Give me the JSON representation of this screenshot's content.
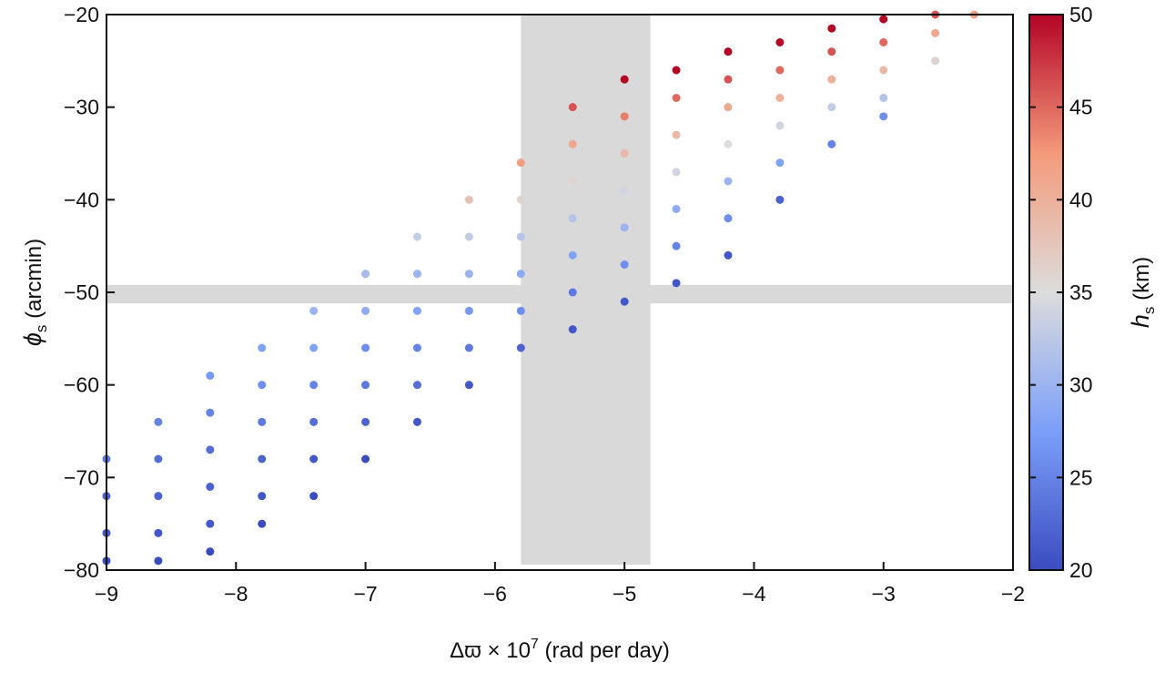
{
  "chart_data": {
    "type": "scatter",
    "title": "",
    "xlabel": {
      "main": "Δϖ × 10",
      "sup": "7",
      "rest": " (rad per day)"
    },
    "ylabel": {
      "main": "ϕ",
      "sub": "s",
      "rest": " (arcmin)"
    },
    "xlim": [
      -9,
      -2
    ],
    "ylim": [
      -80,
      -20
    ],
    "xticks": [
      -9,
      -8,
      -7,
      -6,
      -5,
      -4,
      -3,
      -2
    ],
    "xtick_labels": [
      "−9",
      "−8",
      "−7",
      "−6",
      "−5",
      "−4",
      "−3",
      "−2"
    ],
    "yticks": [
      -20,
      -30,
      -40,
      -50,
      -60,
      -70,
      -80
    ],
    "ytick_labels": [
      "−20",
      "−30",
      "−40",
      "−50",
      "−60",
      "−70",
      "−80"
    ],
    "grid": false,
    "shaded_bands": [
      {
        "axis": "x",
        "range": [
          -5.8,
          -4.8
        ],
        "color": "#d9d9d9"
      },
      {
        "axis": "y",
        "range": [
          -51.2,
          -49.2
        ],
        "color": "#d9d9d9"
      }
    ],
    "colorbar": {
      "label": {
        "main": "h",
        "sub": "s",
        "rest": " (km)"
      },
      "range": [
        20,
        50
      ],
      "ticks": [
        20,
        25,
        30,
        35,
        40,
        45,
        50
      ],
      "tick_labels": [
        "20",
        "25",
        "30",
        "35",
        "40",
        "45",
        "50"
      ],
      "colormap": "coolwarm",
      "colors": [
        "#3b4cc0",
        "#7b9ff9",
        "#dcdcdc",
        "#f49a7b",
        "#b40426"
      ],
      "placement": "right"
    },
    "points_xyh": [
      [
        -9.0,
        -68,
        24
      ],
      [
        -9.0,
        -72,
        22
      ],
      [
        -9.0,
        -76,
        21
      ],
      [
        -9.0,
        -79,
        20
      ],
      [
        -8.6,
        -64,
        25
      ],
      [
        -8.6,
        -68,
        23
      ],
      [
        -8.6,
        -72,
        22
      ],
      [
        -8.6,
        -76,
        21
      ],
      [
        -8.6,
        -79,
        20
      ],
      [
        -8.2,
        -59,
        27
      ],
      [
        -8.2,
        -63,
        25
      ],
      [
        -8.2,
        -67,
        23
      ],
      [
        -8.2,
        -71,
        22
      ],
      [
        -8.2,
        -75,
        21
      ],
      [
        -8.2,
        -78,
        20
      ],
      [
        -7.8,
        -56,
        28
      ],
      [
        -7.8,
        -60,
        26
      ],
      [
        -7.8,
        -64,
        24
      ],
      [
        -7.8,
        -68,
        22
      ],
      [
        -7.8,
        -72,
        21
      ],
      [
        -7.8,
        -75,
        20
      ],
      [
        -7.4,
        -52,
        30
      ],
      [
        -7.4,
        -56,
        28
      ],
      [
        -7.4,
        -60,
        25
      ],
      [
        -7.4,
        -64,
        23
      ],
      [
        -7.4,
        -68,
        21
      ],
      [
        -7.4,
        -72,
        20
      ],
      [
        -7.0,
        -48,
        31
      ],
      [
        -7.0,
        -52,
        29
      ],
      [
        -7.0,
        -56,
        26
      ],
      [
        -7.0,
        -60,
        24
      ],
      [
        -7.0,
        -64,
        22
      ],
      [
        -7.0,
        -68,
        20
      ],
      [
        -6.6,
        -44,
        33
      ],
      [
        -6.6,
        -48,
        30
      ],
      [
        -6.6,
        -52,
        28
      ],
      [
        -6.6,
        -56,
        25
      ],
      [
        -6.6,
        -60,
        23
      ],
      [
        -6.6,
        -64,
        21
      ],
      [
        -6.2,
        -40,
        38
      ],
      [
        -6.2,
        -44,
        33
      ],
      [
        -6.2,
        -48,
        30
      ],
      [
        -6.2,
        -52,
        27
      ],
      [
        -6.2,
        -56,
        24
      ],
      [
        -6.2,
        -60,
        21
      ],
      [
        -5.8,
        -36,
        42
      ],
      [
        -5.8,
        -40,
        36
      ],
      [
        -5.8,
        -44,
        32
      ],
      [
        -5.8,
        -48,
        29
      ],
      [
        -5.8,
        -52,
        26
      ],
      [
        -5.8,
        -56,
        22
      ],
      [
        -5.4,
        -30,
        46
      ],
      [
        -5.4,
        -34,
        41
      ],
      [
        -5.4,
        -38,
        36
      ],
      [
        -5.4,
        -42,
        32
      ],
      [
        -5.4,
        -46,
        28
      ],
      [
        -5.4,
        -50,
        24
      ],
      [
        -5.4,
        -54,
        21
      ],
      [
        -5.0,
        -27,
        50
      ],
      [
        -5.0,
        -31,
        44
      ],
      [
        -5.0,
        -35,
        39
      ],
      [
        -5.0,
        -39,
        34
      ],
      [
        -5.0,
        -43,
        30
      ],
      [
        -5.0,
        -47,
        26
      ],
      [
        -5.0,
        -51,
        21
      ],
      [
        -4.6,
        -26,
        50
      ],
      [
        -4.6,
        -29,
        45
      ],
      [
        -4.6,
        -33,
        39
      ],
      [
        -4.6,
        -37,
        34
      ],
      [
        -4.6,
        -41,
        29
      ],
      [
        -4.6,
        -45,
        25
      ],
      [
        -4.6,
        -49,
        21
      ],
      [
        -4.2,
        -24,
        50
      ],
      [
        -4.2,
        -27,
        46
      ],
      [
        -4.2,
        -30,
        41
      ],
      [
        -4.2,
        -34,
        35
      ],
      [
        -4.2,
        -38,
        30
      ],
      [
        -4.2,
        -42,
        26
      ],
      [
        -4.2,
        -46,
        21
      ],
      [
        -3.8,
        -23,
        50
      ],
      [
        -3.8,
        -26,
        45
      ],
      [
        -3.8,
        -29,
        40
      ],
      [
        -3.8,
        -32,
        34
      ],
      [
        -3.8,
        -36,
        28
      ],
      [
        -3.8,
        -40,
        22
      ],
      [
        -3.4,
        -21.5,
        50
      ],
      [
        -3.4,
        -24,
        46
      ],
      [
        -3.4,
        -27,
        40
      ],
      [
        -3.4,
        -30,
        33
      ],
      [
        -3.4,
        -34,
        25
      ],
      [
        -3.0,
        -20.5,
        50
      ],
      [
        -3.0,
        -23,
        45
      ],
      [
        -3.0,
        -26,
        39
      ],
      [
        -3.0,
        -29,
        32
      ],
      [
        -3.0,
        -31,
        26
      ],
      [
        -2.6,
        -20,
        46
      ],
      [
        -2.6,
        -22,
        41
      ],
      [
        -2.6,
        -25,
        36
      ],
      [
        -2.3,
        -20,
        42
      ]
    ]
  }
}
